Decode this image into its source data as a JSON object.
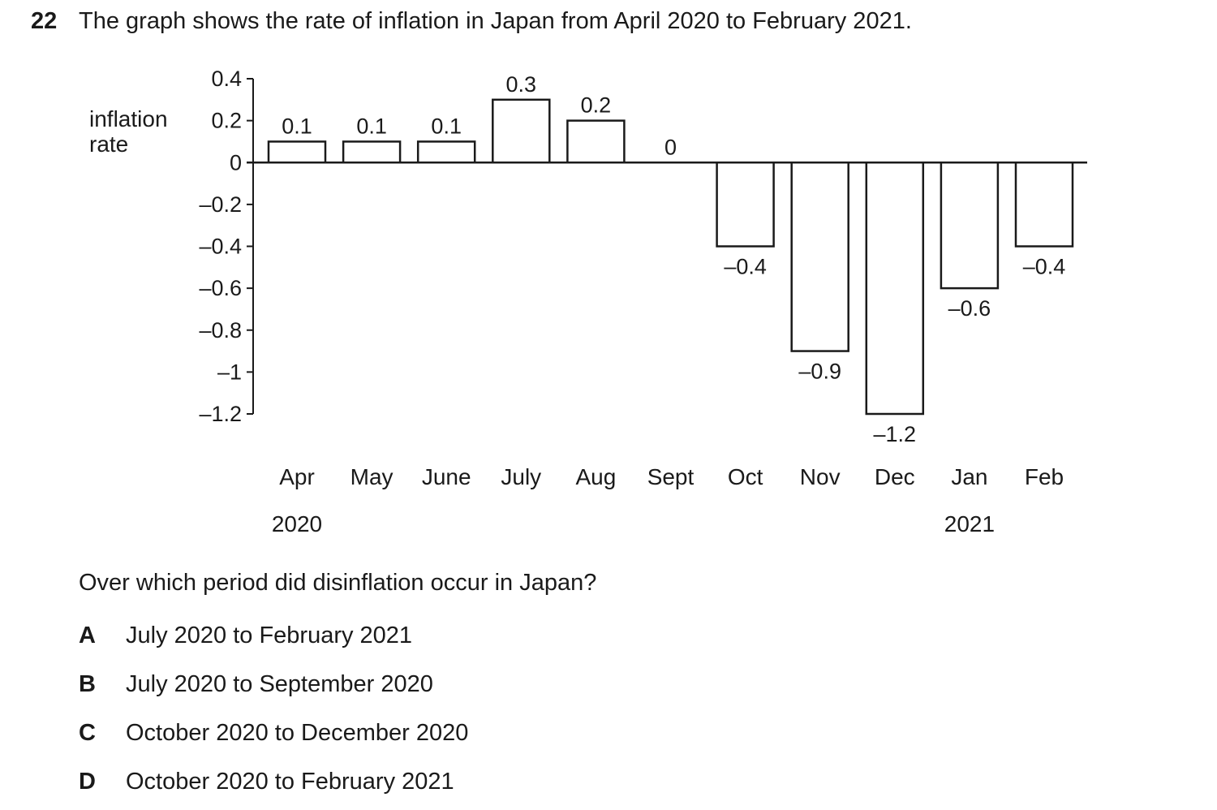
{
  "question": {
    "number": "22",
    "text": "The graph shows the rate of inflation in Japan from April 2020 to February 2021.",
    "prompt": "Over which period did disinflation occur in Japan?",
    "options": [
      {
        "letter": "A",
        "text": "July 2020 to February 2021"
      },
      {
        "letter": "B",
        "text": "July 2020 to September 2020"
      },
      {
        "letter": "C",
        "text": "October 2020 to December 2020"
      },
      {
        "letter": "D",
        "text": "October 2020 to February 2021"
      }
    ]
  },
  "chart_data": {
    "type": "bar",
    "ylabel": "inflation rate",
    "categories": [
      "Apr",
      "May",
      "June",
      "July",
      "Aug",
      "Sept",
      "Oct",
      "Nov",
      "Dec",
      "Jan",
      "Feb"
    ],
    "year_labels": [
      {
        "category": "Apr",
        "label": "2020"
      },
      {
        "category": "Jan",
        "label": "2021"
      }
    ],
    "values": [
      0.1,
      0.1,
      0.1,
      0.3,
      0.2,
      0,
      -0.4,
      -0.9,
      -1.2,
      -0.6,
      -0.4
    ],
    "data_labels": [
      "0.1",
      "0.1",
      "0.1",
      "0.3",
      "0.2",
      "0",
      "–0.4",
      "–0.9",
      "–1.2",
      "–0.6",
      "–0.4"
    ],
    "yticks": [
      0.4,
      0.2,
      0,
      -0.2,
      -0.4,
      -0.6,
      -0.8,
      -1,
      -1.2
    ],
    "ytick_labels": [
      "0.4",
      "0.2",
      "0",
      "–0.2",
      "–0.4",
      "–0.6",
      "–0.8",
      "–1",
      "–1.2"
    ],
    "ylim": [
      -1.2,
      0.4
    ],
    "grid": false,
    "bar_fill": "#ffffff",
    "bar_stroke": "#1a1a1a"
  }
}
